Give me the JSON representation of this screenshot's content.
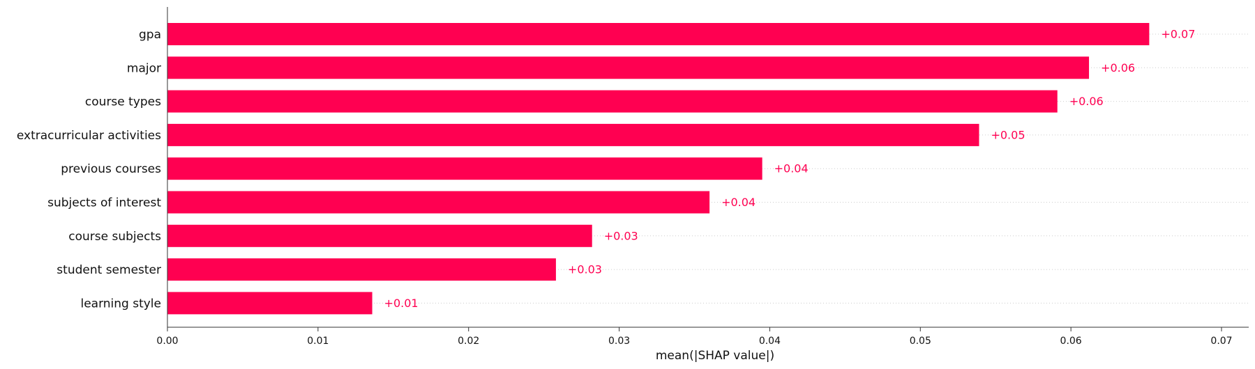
{
  "chart_data": {
    "type": "bar",
    "orientation": "horizontal",
    "categories": [
      "gpa",
      "major",
      "course types",
      "extracurricular activities",
      "previous courses",
      "subjects of interest",
      "course subjects",
      "student semester",
      "learning style"
    ],
    "values": [
      0.0652,
      0.0612,
      0.0591,
      0.0539,
      0.0395,
      0.036,
      0.0282,
      0.0258,
      0.0136
    ],
    "value_labels": [
      "+0.07",
      "+0.06",
      "+0.06",
      "+0.05",
      "+0.04",
      "+0.04",
      "+0.03",
      "+0.03",
      "+0.01"
    ],
    "xlabel": "mean(|SHAP value|)",
    "xlim": [
      0,
      0.072
    ],
    "xticks": [
      0,
      0.01,
      0.02,
      0.03,
      0.04,
      0.05,
      0.06,
      0.07
    ],
    "xtick_labels": [
      "0.00",
      "0.01",
      "0.02",
      "0.03",
      "0.04",
      "0.05",
      "0.06",
      "0.07"
    ],
    "grid": "dotted row guides",
    "bar_color": "#ff0051",
    "label_color": "#ff0051"
  }
}
